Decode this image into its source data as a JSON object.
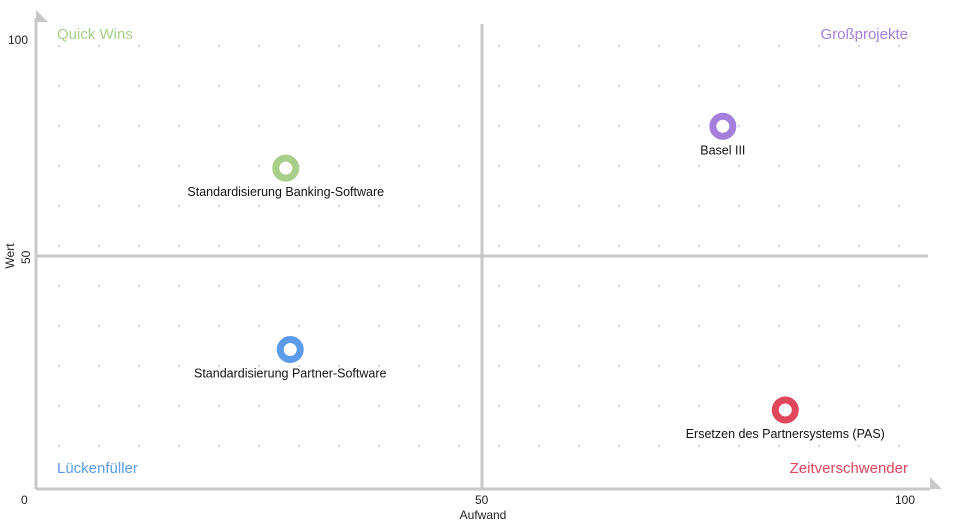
{
  "chart_data": {
    "type": "scatter",
    "xlabel": "Aufwand",
    "ylabel": "Wert",
    "xlim": [
      0,
      100
    ],
    "ylim": [
      0,
      100
    ],
    "xticks": [
      "0",
      "50",
      "100"
    ],
    "yticks": [
      "100",
      "50"
    ],
    "grid": "dotted",
    "quadrants": [
      {
        "label": "Quick Wins",
        "position": "top-left",
        "color": "#a8cf8a"
      },
      {
        "label": "Großprojekte",
        "position": "top-right",
        "color": "#a57fdc"
      },
      {
        "label": "Lückenfüller",
        "position": "bottom-left",
        "color": "#5b9bea"
      },
      {
        "label": "Zeitverschwender",
        "position": "bottom-right",
        "color": "#e0475a"
      }
    ],
    "points": [
      {
        "label": "Standardisierung Banking-Software",
        "x": 28,
        "y": 69,
        "color": "#a8cf8a"
      },
      {
        "label": "Basel III",
        "x": 77,
        "y": 78,
        "color": "#a57fdc"
      },
      {
        "label": "Standardisierung Partner-Software",
        "x": 28.5,
        "y": 30,
        "color": "#5b9bea"
      },
      {
        "label": "Ersetzen des Partnersystems (PAS)",
        "x": 84,
        "y": 17,
        "color": "#e0475a"
      }
    ]
  }
}
